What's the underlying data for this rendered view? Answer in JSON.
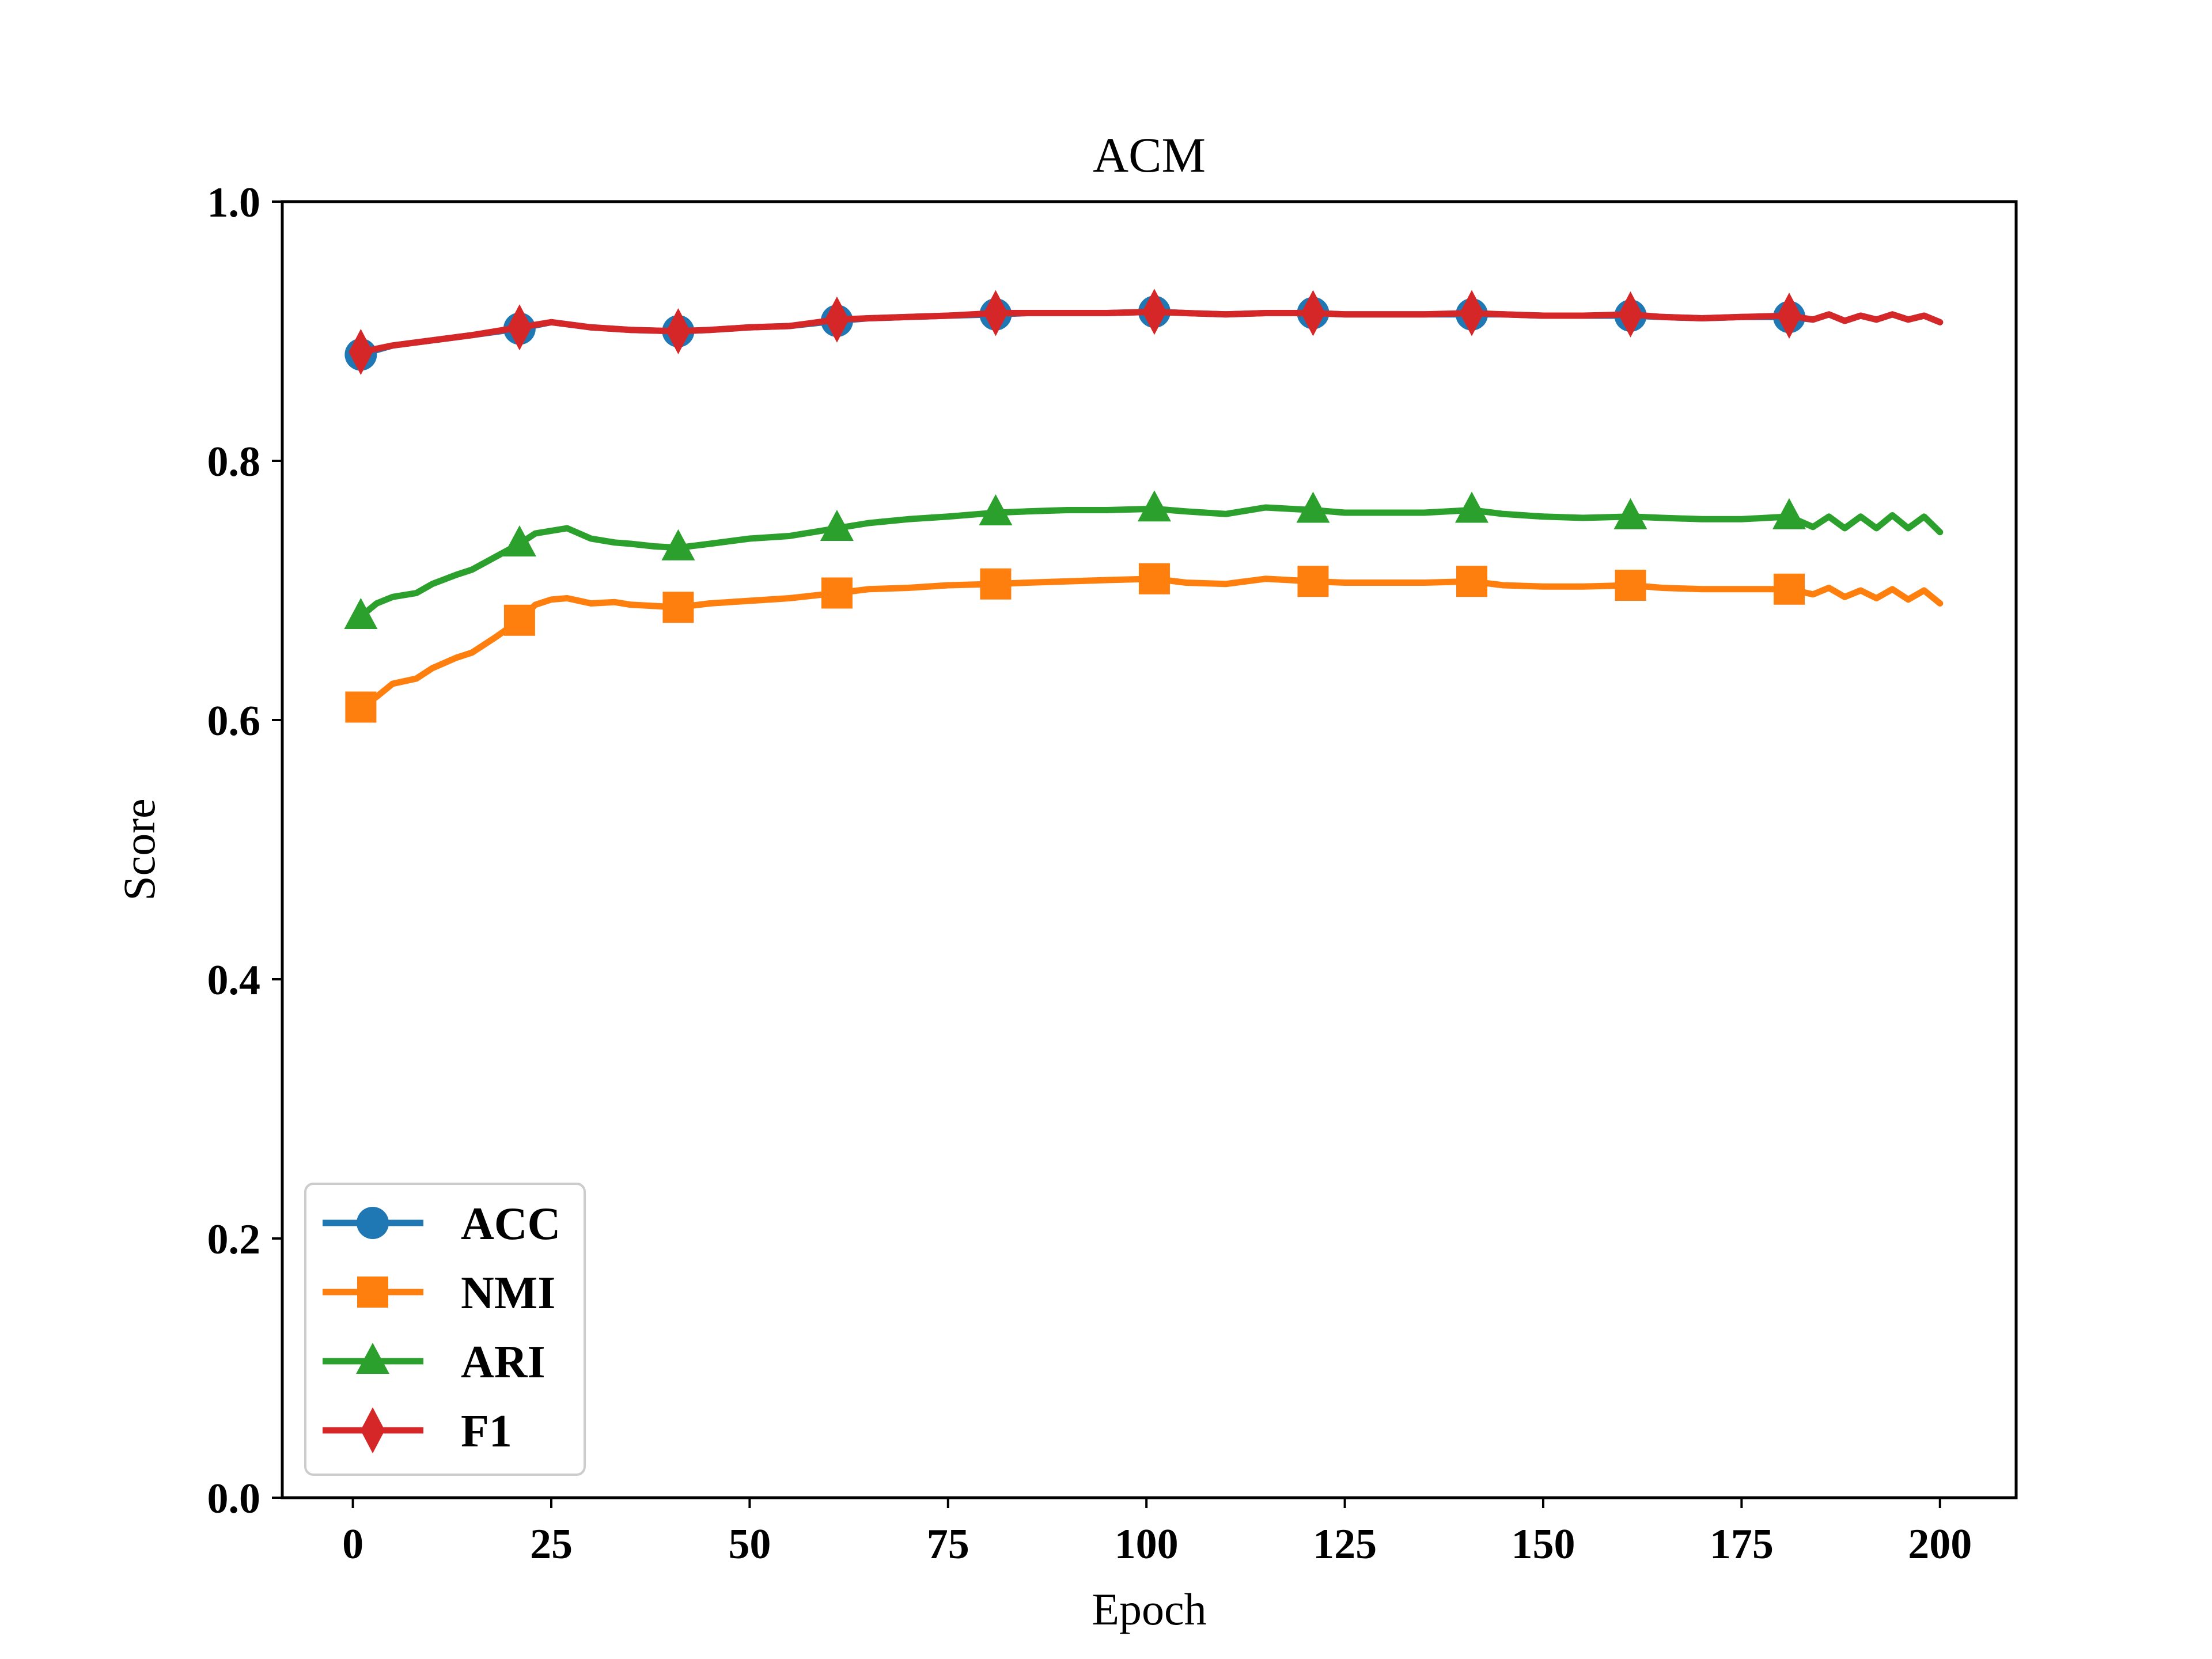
{
  "chart_data": {
    "type": "line",
    "title": "ACM",
    "xlabel": "Epoch",
    "ylabel": "Score",
    "xlim": [
      -8.9,
      209.6
    ],
    "ylim": [
      0.0,
      1.0
    ],
    "xticks": [
      0,
      25,
      50,
      75,
      100,
      125,
      150,
      175,
      200
    ],
    "yticks": [
      0.0,
      0.2,
      0.4,
      0.6,
      0.8,
      1.0
    ],
    "xtick_labels": [
      "0",
      "25",
      "50",
      "75",
      "100",
      "125",
      "150",
      "175",
      "200"
    ],
    "ytick_labels": [
      "0.0",
      "0.2",
      "0.4",
      "0.6",
      "0.8",
      "1.0"
    ],
    "grid": false,
    "legend_position": "bottom-left",
    "marker_epochs": [
      1,
      21,
      41,
      61,
      81,
      101,
      121,
      141,
      161,
      181
    ],
    "series": [
      {
        "name": "ACC",
        "color": "#1f77b4",
        "marker": "circle",
        "x": [
          1,
          5,
          10,
          15,
          21,
          25,
          30,
          35,
          41,
          45,
          50,
          55,
          61,
          65,
          70,
          75,
          81,
          85,
          90,
          95,
          101,
          105,
          110,
          115,
          121,
          125,
          130,
          135,
          141,
          145,
          150,
          155,
          161,
          165,
          170,
          175,
          181,
          184,
          186,
          188,
          190,
          192,
          194,
          196,
          198,
          200
        ],
        "values": [
          0.882,
          0.889,
          0.893,
          0.897,
          0.902,
          0.907,
          0.903,
          0.901,
          0.9,
          0.901,
          0.903,
          0.904,
          0.908,
          0.91,
          0.911,
          0.912,
          0.913,
          0.914,
          0.914,
          0.914,
          0.915,
          0.914,
          0.913,
          0.914,
          0.914,
          0.913,
          0.913,
          0.913,
          0.913,
          0.913,
          0.912,
          0.912,
          0.912,
          0.911,
          0.91,
          0.911,
          0.911,
          0.909,
          0.913,
          0.908,
          0.912,
          0.909,
          0.913,
          0.909,
          0.912,
          0.907
        ]
      },
      {
        "name": "NMI",
        "color": "#ff7f0e",
        "marker": "square",
        "x": [
          1,
          3,
          5,
          8,
          10,
          13,
          15,
          18,
          21,
          23,
          25,
          27,
          30,
          33,
          35,
          38,
          41,
          45,
          50,
          55,
          61,
          65,
          70,
          75,
          81,
          85,
          90,
          95,
          101,
          105,
          110,
          115,
          121,
          125,
          130,
          135,
          141,
          145,
          150,
          155,
          161,
          165,
          170,
          175,
          181,
          184,
          186,
          188,
          190,
          192,
          194,
          196,
          198,
          200
        ],
        "values": [
          0.61,
          0.618,
          0.628,
          0.632,
          0.64,
          0.648,
          0.652,
          0.664,
          0.677,
          0.689,
          0.693,
          0.694,
          0.69,
          0.691,
          0.689,
          0.688,
          0.687,
          0.69,
          0.692,
          0.694,
          0.698,
          0.701,
          0.702,
          0.704,
          0.705,
          0.706,
          0.707,
          0.708,
          0.709,
          0.706,
          0.705,
          0.709,
          0.707,
          0.706,
          0.706,
          0.706,
          0.707,
          0.704,
          0.703,
          0.703,
          0.704,
          0.702,
          0.701,
          0.701,
          0.701,
          0.697,
          0.702,
          0.695,
          0.7,
          0.694,
          0.701,
          0.693,
          0.7,
          0.69
        ]
      },
      {
        "name": "ARI",
        "color": "#2ca02c",
        "marker": "triangle",
        "x": [
          1,
          3,
          5,
          8,
          10,
          13,
          15,
          18,
          21,
          23,
          25,
          27,
          30,
          33,
          35,
          38,
          41,
          45,
          50,
          55,
          61,
          65,
          70,
          75,
          81,
          85,
          90,
          95,
          101,
          105,
          110,
          115,
          121,
          125,
          130,
          135,
          141,
          145,
          150,
          155,
          161,
          165,
          170,
          175,
          181,
          184,
          186,
          188,
          190,
          192,
          194,
          196,
          198,
          200
        ],
        "values": [
          0.68,
          0.69,
          0.695,
          0.698,
          0.705,
          0.712,
          0.716,
          0.726,
          0.736,
          0.744,
          0.746,
          0.748,
          0.74,
          0.737,
          0.736,
          0.734,
          0.733,
          0.736,
          0.74,
          0.742,
          0.748,
          0.752,
          0.755,
          0.757,
          0.76,
          0.761,
          0.762,
          0.762,
          0.763,
          0.761,
          0.759,
          0.764,
          0.762,
          0.76,
          0.76,
          0.76,
          0.762,
          0.759,
          0.757,
          0.756,
          0.757,
          0.756,
          0.755,
          0.755,
          0.757,
          0.749,
          0.757,
          0.748,
          0.757,
          0.748,
          0.758,
          0.748,
          0.757,
          0.745
        ]
      },
      {
        "name": "F1",
        "color": "#d62728",
        "marker": "thin_diamond",
        "x": [
          1,
          5,
          10,
          15,
          21,
          25,
          30,
          35,
          41,
          45,
          50,
          55,
          61,
          65,
          70,
          75,
          81,
          85,
          90,
          95,
          101,
          105,
          110,
          115,
          121,
          125,
          130,
          135,
          141,
          145,
          150,
          155,
          161,
          165,
          170,
          175,
          181,
          184,
          186,
          188,
          190,
          192,
          194,
          196,
          198,
          200
        ],
        "values": [
          0.884,
          0.889,
          0.893,
          0.897,
          0.903,
          0.907,
          0.903,
          0.901,
          0.9,
          0.901,
          0.903,
          0.904,
          0.909,
          0.91,
          0.911,
          0.912,
          0.914,
          0.914,
          0.914,
          0.914,
          0.915,
          0.914,
          0.913,
          0.914,
          0.914,
          0.913,
          0.913,
          0.913,
          0.914,
          0.913,
          0.912,
          0.912,
          0.913,
          0.911,
          0.91,
          0.911,
          0.912,
          0.909,
          0.913,
          0.908,
          0.912,
          0.909,
          0.913,
          0.909,
          0.912,
          0.907
        ]
      }
    ]
  }
}
